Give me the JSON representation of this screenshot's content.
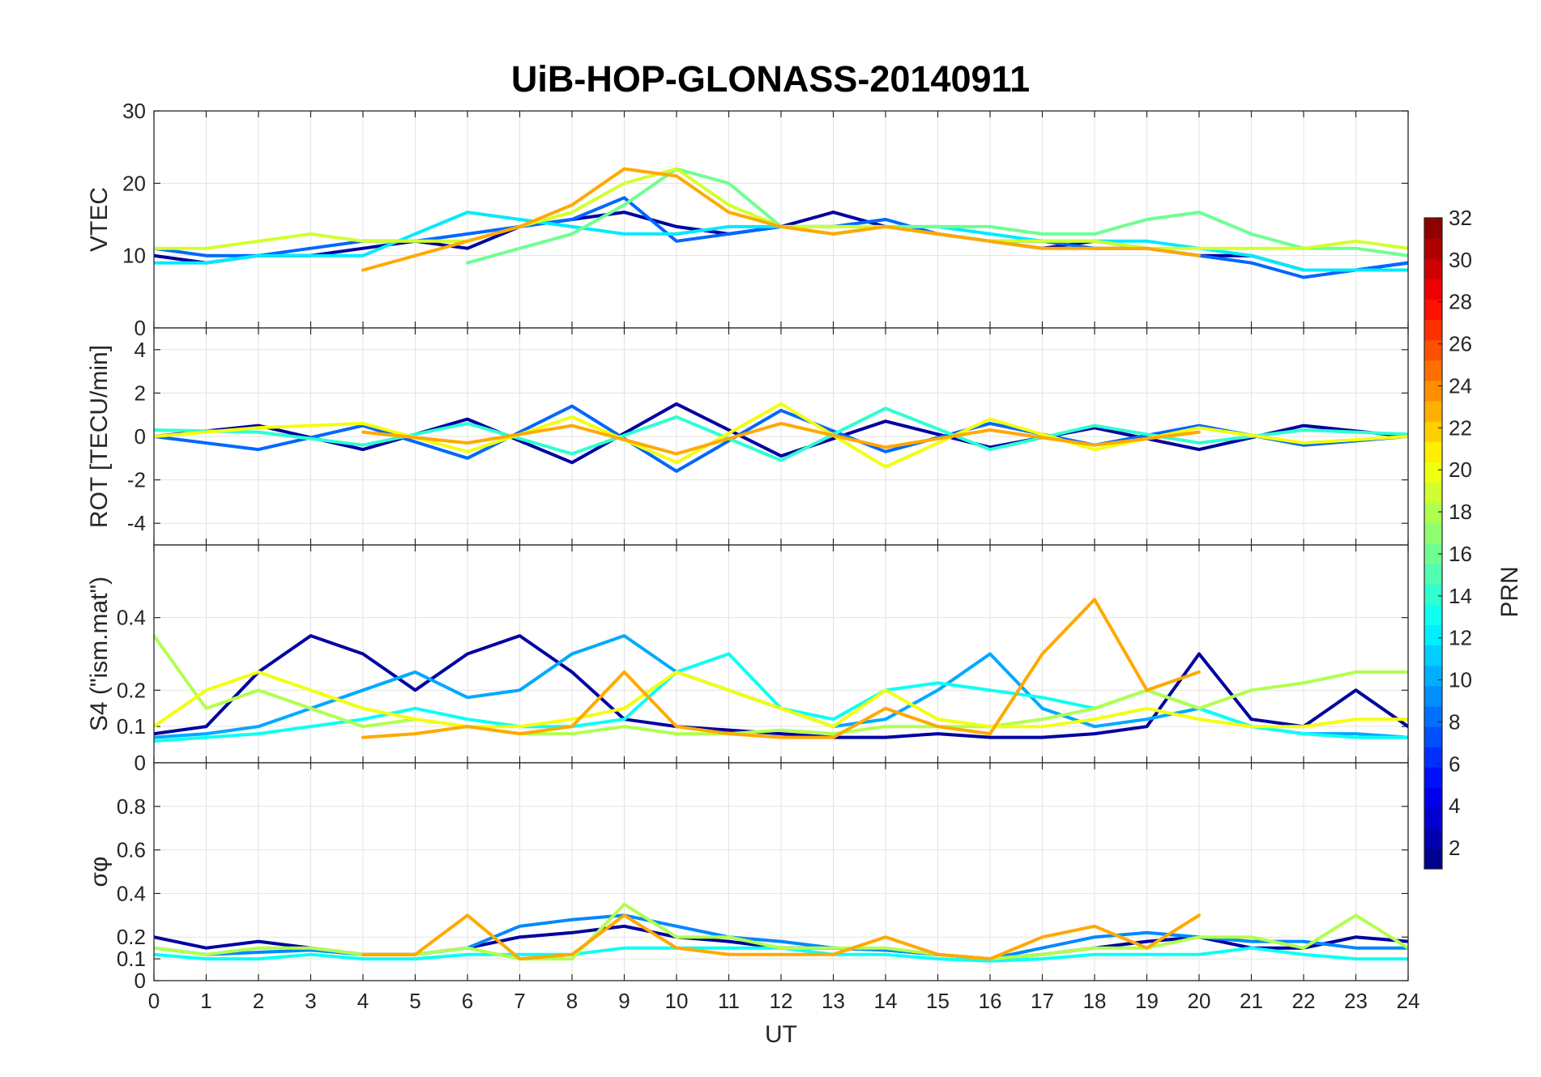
{
  "title": "UiB-HOP-GLONASS-20140911",
  "chart_data": [
    {
      "type": "line",
      "panel": "vtec",
      "ylabel": "VTEC",
      "xlim": [
        0,
        24
      ],
      "ylim": [
        0,
        30
      ],
      "yticks": [
        "0",
        "10",
        "20",
        "30"
      ],
      "grid": true,
      "series": [
        {
          "prn": 2,
          "x": [
            0,
            1,
            2,
            3,
            4,
            5,
            6,
            7,
            8,
            9,
            10,
            11,
            12,
            13,
            14,
            15,
            16,
            17,
            18,
            19,
            20,
            21,
            22,
            23,
            24
          ],
          "values": [
            10,
            9,
            10,
            10,
            11,
            12,
            11,
            14,
            15,
            16,
            14,
            13,
            14,
            16,
            14,
            13,
            12,
            11,
            12,
            11,
            10,
            10,
            8,
            8,
            9
          ]
        },
        {
          "prn": 8,
          "x": [
            0,
            1,
            2,
            3,
            4,
            5,
            6,
            7,
            8,
            9,
            10,
            11,
            12,
            13,
            14,
            15,
            16,
            17,
            18,
            19,
            20,
            21,
            22,
            23,
            24
          ],
          "values": [
            11,
            10,
            10,
            11,
            12,
            12,
            13,
            14,
            15,
            18,
            12,
            13,
            14,
            14,
            15,
            13,
            12,
            12,
            11,
            11,
            10,
            9,
            7,
            8,
            9
          ]
        },
        {
          "prn": 12,
          "x": [
            0,
            1,
            2,
            3,
            4,
            5,
            6,
            7,
            8,
            9,
            10,
            11,
            12,
            13,
            14,
            15,
            16,
            17,
            18,
            19,
            20,
            21,
            22,
            23,
            24
          ],
          "values": [
            9,
            9,
            10,
            10,
            10,
            13,
            16,
            15,
            14,
            13,
            13,
            14,
            14,
            13,
            14,
            14,
            13,
            12,
            12,
            12,
            11,
            10,
            8,
            8,
            8
          ]
        },
        {
          "prn": 16,
          "x": [
            6,
            7,
            8,
            9,
            10,
            11,
            12,
            13,
            14,
            15,
            16,
            17,
            18,
            19,
            20,
            21,
            22,
            23,
            24
          ],
          "values": [
            9,
            11,
            13,
            17,
            22,
            20,
            14,
            14,
            14,
            14,
            14,
            13,
            13,
            15,
            16,
            13,
            11,
            11,
            10
          ]
        },
        {
          "prn": 19,
          "x": [
            0,
            1,
            2,
            3,
            4,
            5,
            6,
            7,
            8,
            9,
            10,
            11,
            12,
            13,
            14,
            15,
            16,
            17,
            18,
            19,
            20,
            21,
            22,
            23,
            24
          ],
          "values": [
            11,
            11,
            12,
            13,
            12,
            12,
            12,
            14,
            16,
            20,
            22,
            17,
            14,
            14,
            14,
            13,
            12,
            12,
            12,
            11,
            11,
            11,
            11,
            12,
            11
          ]
        },
        {
          "prn": 23,
          "x": [
            4,
            5,
            6,
            7,
            8,
            9,
            10,
            11,
            12,
            13,
            14,
            15,
            16,
            17,
            18,
            19,
            20
          ],
          "values": [
            8,
            10,
            12,
            14,
            17,
            22,
            21,
            16,
            14,
            13,
            14,
            13,
            12,
            11,
            11,
            11,
            10
          ]
        }
      ]
    },
    {
      "type": "line",
      "panel": "rot",
      "ylabel": "ROT [TECU/min]",
      "xlim": [
        0,
        24
      ],
      "ylim": [
        -5,
        5
      ],
      "yticks": [
        "-4",
        "-2",
        "0",
        "2",
        "4"
      ],
      "grid": true,
      "series": [
        {
          "prn": 2,
          "x": [
            0,
            2,
            4,
            6,
            8,
            10,
            12,
            14,
            16,
            18,
            20,
            22,
            24
          ],
          "values": [
            0,
            0.5,
            -0.6,
            0.8,
            -1.2,
            1.5,
            -0.9,
            0.7,
            -0.5,
            0.4,
            -0.6,
            0.5,
            0
          ]
        },
        {
          "prn": 8,
          "x": [
            0,
            2,
            4,
            6,
            8,
            10,
            12,
            14,
            16,
            18,
            20,
            22,
            24
          ],
          "values": [
            0,
            -0.6,
            0.5,
            -1,
            1.4,
            -1.6,
            1.2,
            -0.7,
            0.6,
            -0.4,
            0.5,
            -0.4,
            0
          ]
        },
        {
          "prn": 14,
          "x": [
            0,
            2,
            4,
            6,
            8,
            10,
            12,
            14,
            16,
            18,
            20,
            22,
            24
          ],
          "values": [
            0.3,
            0.2,
            -0.4,
            0.6,
            -0.8,
            0.9,
            -1.1,
            1.3,
            -0.6,
            0.5,
            -0.3,
            0.3,
            0.1
          ]
        },
        {
          "prn": 20,
          "x": [
            0,
            2,
            4,
            6,
            8,
            10,
            12,
            14,
            16,
            18,
            20,
            22,
            24
          ],
          "values": [
            0,
            0.4,
            0.6,
            -0.7,
            0.9,
            -1.2,
            1.5,
            -1.4,
            0.8,
            -0.6,
            0.4,
            -0.3,
            0
          ]
        },
        {
          "prn": 23,
          "x": [
            4,
            6,
            8,
            10,
            12,
            14,
            16,
            18,
            20
          ],
          "values": [
            0.2,
            -0.3,
            0.5,
            -0.8,
            0.6,
            -0.5,
            0.3,
            -0.4,
            0.2
          ]
        }
      ]
    },
    {
      "type": "line",
      "panel": "s4",
      "ylabel": "S4 (\"ism.mat\")",
      "xlim": [
        0,
        24
      ],
      "ylim": [
        0,
        0.6
      ],
      "yticks": [
        "0",
        "0.1",
        "0.2",
        "0.4"
      ],
      "grid": true,
      "series": [
        {
          "prn": 2,
          "x": [
            0,
            1,
            2,
            3,
            4,
            5,
            6,
            7,
            8,
            9,
            10,
            11,
            12,
            13,
            14,
            15,
            16,
            17,
            18,
            19,
            20,
            21,
            22,
            23,
            24
          ],
          "values": [
            0.08,
            0.1,
            0.25,
            0.35,
            0.3,
            0.2,
            0.3,
            0.35,
            0.25,
            0.12,
            0.1,
            0.09,
            0.08,
            0.07,
            0.07,
            0.08,
            0.07,
            0.07,
            0.08,
            0.1,
            0.3,
            0.12,
            0.1,
            0.2,
            0.1
          ]
        },
        {
          "prn": 10,
          "x": [
            0,
            1,
            2,
            3,
            4,
            5,
            6,
            7,
            8,
            9,
            10,
            11,
            12,
            13,
            14,
            15,
            16,
            17,
            18,
            19,
            20,
            21,
            22,
            23,
            24
          ],
          "values": [
            0.07,
            0.08,
            0.1,
            0.15,
            0.2,
            0.25,
            0.18,
            0.2,
            0.3,
            0.35,
            0.25,
            0.2,
            0.15,
            0.1,
            0.12,
            0.2,
            0.3,
            0.15,
            0.1,
            0.12,
            0.15,
            0.1,
            0.08,
            0.08,
            0.07
          ]
        },
        {
          "prn": 13,
          "x": [
            0,
            1,
            2,
            3,
            4,
            5,
            6,
            7,
            8,
            9,
            10,
            11,
            12,
            13,
            14,
            15,
            16,
            17,
            18,
            19,
            20,
            21,
            22,
            23,
            24
          ],
          "values": [
            0.06,
            0.07,
            0.08,
            0.1,
            0.12,
            0.15,
            0.12,
            0.1,
            0.1,
            0.12,
            0.25,
            0.3,
            0.15,
            0.12,
            0.2,
            0.22,
            0.2,
            0.18,
            0.15,
            0.2,
            0.15,
            0.1,
            0.08,
            0.07,
            0.07
          ]
        },
        {
          "prn": 18,
          "x": [
            0,
            1,
            2,
            3,
            4,
            5,
            6,
            7,
            8,
            9,
            10,
            11,
            12,
            13,
            14,
            15,
            16,
            17,
            18,
            19,
            20,
            21,
            22,
            23,
            24
          ],
          "values": [
            0.35,
            0.15,
            0.2,
            0.15,
            0.1,
            0.12,
            0.1,
            0.08,
            0.08,
            0.1,
            0.08,
            0.08,
            0.09,
            0.08,
            0.1,
            0.1,
            0.1,
            0.12,
            0.15,
            0.2,
            0.15,
            0.2,
            0.22,
            0.25,
            0.25
          ]
        },
        {
          "prn": 20,
          "x": [
            0,
            1,
            2,
            3,
            4,
            5,
            6,
            7,
            8,
            9,
            10,
            11,
            12,
            13,
            14,
            15,
            16,
            17,
            18,
            19,
            20,
            21,
            22,
            23,
            24
          ],
          "values": [
            0.1,
            0.2,
            0.25,
            0.2,
            0.15,
            0.12,
            0.1,
            0.1,
            0.12,
            0.15,
            0.25,
            0.2,
            0.15,
            0.1,
            0.2,
            0.12,
            0.1,
            0.1,
            0.12,
            0.15,
            0.12,
            0.1,
            0.1,
            0.12,
            0.12
          ]
        },
        {
          "prn": 23,
          "x": [
            4,
            5,
            6,
            7,
            8,
            9,
            10,
            11,
            12,
            13,
            14,
            15,
            16,
            17,
            18,
            19,
            20
          ],
          "values": [
            0.07,
            0.08,
            0.1,
            0.08,
            0.1,
            0.25,
            0.1,
            0.08,
            0.07,
            0.07,
            0.15,
            0.1,
            0.08,
            0.3,
            0.45,
            0.2,
            0.25
          ]
        }
      ]
    },
    {
      "type": "line",
      "panel": "sigma-phi",
      "ylabel": "σφ",
      "xlim": [
        0,
        24
      ],
      "ylim": [
        0,
        1
      ],
      "yticks": [
        "0",
        "0.1",
        "0.2",
        "0.4",
        "0.6",
        "0.8"
      ],
      "xticks": [
        "0",
        "1",
        "2",
        "3",
        "4",
        "5",
        "6",
        "7",
        "8",
        "9",
        "10",
        "11",
        "12",
        "13",
        "14",
        "15",
        "16",
        "17",
        "18",
        "19",
        "20",
        "21",
        "22",
        "23",
        "24"
      ],
      "xlabel": "UT",
      "grid": true,
      "series": [
        {
          "prn": 2,
          "x": [
            0,
            1,
            2,
            3,
            4,
            5,
            6,
            7,
            8,
            9,
            10,
            11,
            12,
            13,
            14,
            15,
            16,
            17,
            18,
            19,
            20,
            21,
            22,
            23,
            24
          ],
          "values": [
            0.2,
            0.15,
            0.18,
            0.15,
            0.12,
            0.12,
            0.15,
            0.2,
            0.22,
            0.25,
            0.2,
            0.18,
            0.15,
            0.15,
            0.14,
            0.12,
            0.1,
            0.12,
            0.15,
            0.18,
            0.2,
            0.15,
            0.15,
            0.2,
            0.18
          ]
        },
        {
          "prn": 9,
          "x": [
            0,
            1,
            2,
            3,
            4,
            5,
            6,
            7,
            8,
            9,
            10,
            11,
            12,
            13,
            14,
            15,
            16,
            17,
            18,
            19,
            20,
            21,
            22,
            23,
            24
          ],
          "values": [
            0.15,
            0.12,
            0.13,
            0.14,
            0.12,
            0.12,
            0.15,
            0.25,
            0.28,
            0.3,
            0.25,
            0.2,
            0.18,
            0.15,
            0.14,
            0.12,
            0.1,
            0.15,
            0.2,
            0.22,
            0.2,
            0.18,
            0.18,
            0.15,
            0.15
          ]
        },
        {
          "prn": 13,
          "x": [
            0,
            1,
            2,
            3,
            4,
            5,
            6,
            7,
            8,
            9,
            10,
            11,
            12,
            13,
            14,
            15,
            16,
            17,
            18,
            19,
            20,
            21,
            22,
            23,
            24
          ],
          "values": [
            0.12,
            0.1,
            0.1,
            0.12,
            0.1,
            0.1,
            0.12,
            0.12,
            0.12,
            0.15,
            0.15,
            0.15,
            0.15,
            0.12,
            0.12,
            0.1,
            0.09,
            0.1,
            0.12,
            0.12,
            0.12,
            0.15,
            0.12,
            0.1,
            0.1
          ]
        },
        {
          "prn": 18,
          "x": [
            0,
            1,
            2,
            3,
            4,
            5,
            6,
            7,
            8,
            9,
            10,
            11,
            12,
            13,
            14,
            15,
            16,
            17,
            18,
            19,
            20,
            21,
            22,
            23,
            24
          ],
          "values": [
            0.15,
            0.12,
            0.15,
            0.15,
            0.12,
            0.12,
            0.15,
            0.1,
            0.1,
            0.35,
            0.2,
            0.2,
            0.15,
            0.15,
            0.15,
            0.12,
            0.1,
            0.12,
            0.15,
            0.15,
            0.2,
            0.2,
            0.15,
            0.3,
            0.15
          ]
        },
        {
          "prn": 23,
          "x": [
            4,
            5,
            6,
            7,
            8,
            9,
            10,
            11,
            12,
            13,
            14,
            15,
            16,
            17,
            18,
            19,
            20
          ],
          "values": [
            0.12,
            0.12,
            0.3,
            0.1,
            0.12,
            0.3,
            0.15,
            0.12,
            0.12,
            0.12,
            0.2,
            0.12,
            0.1,
            0.2,
            0.25,
            0.15,
            0.3
          ]
        }
      ]
    }
  ],
  "colorbar": {
    "label": "PRN",
    "min": 1,
    "max": 32,
    "ticks": [
      "2",
      "4",
      "6",
      "8",
      "10",
      "12",
      "14",
      "16",
      "18",
      "20",
      "22",
      "24",
      "26",
      "28",
      "30",
      "32"
    ],
    "colormap": "jet",
    "steps": 32
  }
}
